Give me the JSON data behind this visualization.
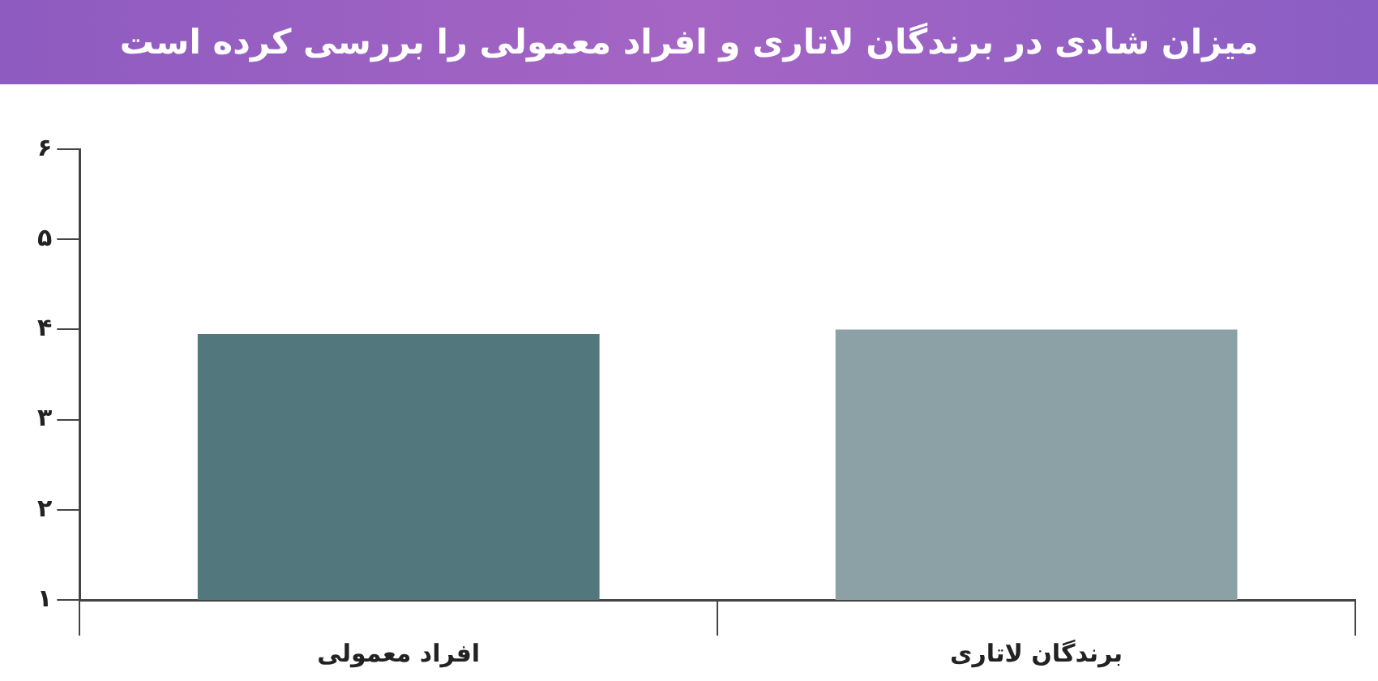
{
  "chart_data": {
    "type": "bar",
    "title": "میزان شادی در برندگان لاتاری و افراد معمولی را بررسی کرده است",
    "categories": [
      "افراد معمولی",
      "برندگان لاتاری"
    ],
    "values": [
      3.95,
      4.0
    ],
    "colors": [
      "#52777c",
      "#8ca1a6"
    ],
    "ylim": [
      1,
      6
    ],
    "yticks": [
      {
        "value": 1,
        "label": "۱"
      },
      {
        "value": 2,
        "label": "۲"
      },
      {
        "value": 3,
        "label": "۳"
      },
      {
        "value": 4,
        "label": "۴"
      },
      {
        "value": 5,
        "label": "۵"
      },
      {
        "value": 6,
        "label": "۶"
      }
    ],
    "grid": false,
    "legend": false
  }
}
